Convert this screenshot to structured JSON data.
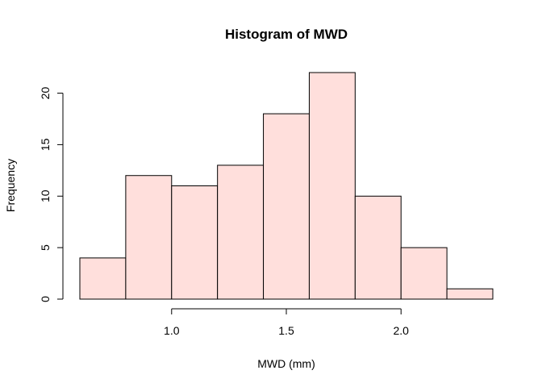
{
  "chart_data": {
    "type": "bar",
    "title": "Histogram of MWD",
    "xlabel": "MWD (mm)",
    "ylabel": "Frequency",
    "bins": [
      {
        "start": 0.6,
        "end": 0.8,
        "count": 4
      },
      {
        "start": 0.8,
        "end": 1.0,
        "count": 12
      },
      {
        "start": 1.0,
        "end": 1.2,
        "count": 11
      },
      {
        "start": 1.2,
        "end": 1.4,
        "count": 13
      },
      {
        "start": 1.4,
        "end": 1.6,
        "count": 18
      },
      {
        "start": 1.6,
        "end": 1.8,
        "count": 22
      },
      {
        "start": 1.8,
        "end": 2.0,
        "count": 10
      },
      {
        "start": 2.0,
        "end": 2.2,
        "count": 5
      },
      {
        "start": 2.2,
        "end": 2.4,
        "count": 1
      }
    ],
    "xticks": [
      {
        "value": 1.0,
        "label": "1.0"
      },
      {
        "value": 1.5,
        "label": "1.5"
      },
      {
        "value": 2.0,
        "label": "2.0"
      }
    ],
    "yticks": [
      {
        "value": 0,
        "label": "0"
      },
      {
        "value": 5,
        "label": "5"
      },
      {
        "value": 10,
        "label": "10"
      },
      {
        "value": 15,
        "label": "15"
      },
      {
        "value": 20,
        "label": "20"
      }
    ],
    "xlim": [
      0.6,
      2.4
    ],
    "ylim": [
      0,
      22
    ],
    "grid": false,
    "bar_color": "#ffdfdc",
    "edge_color": "#000000"
  }
}
